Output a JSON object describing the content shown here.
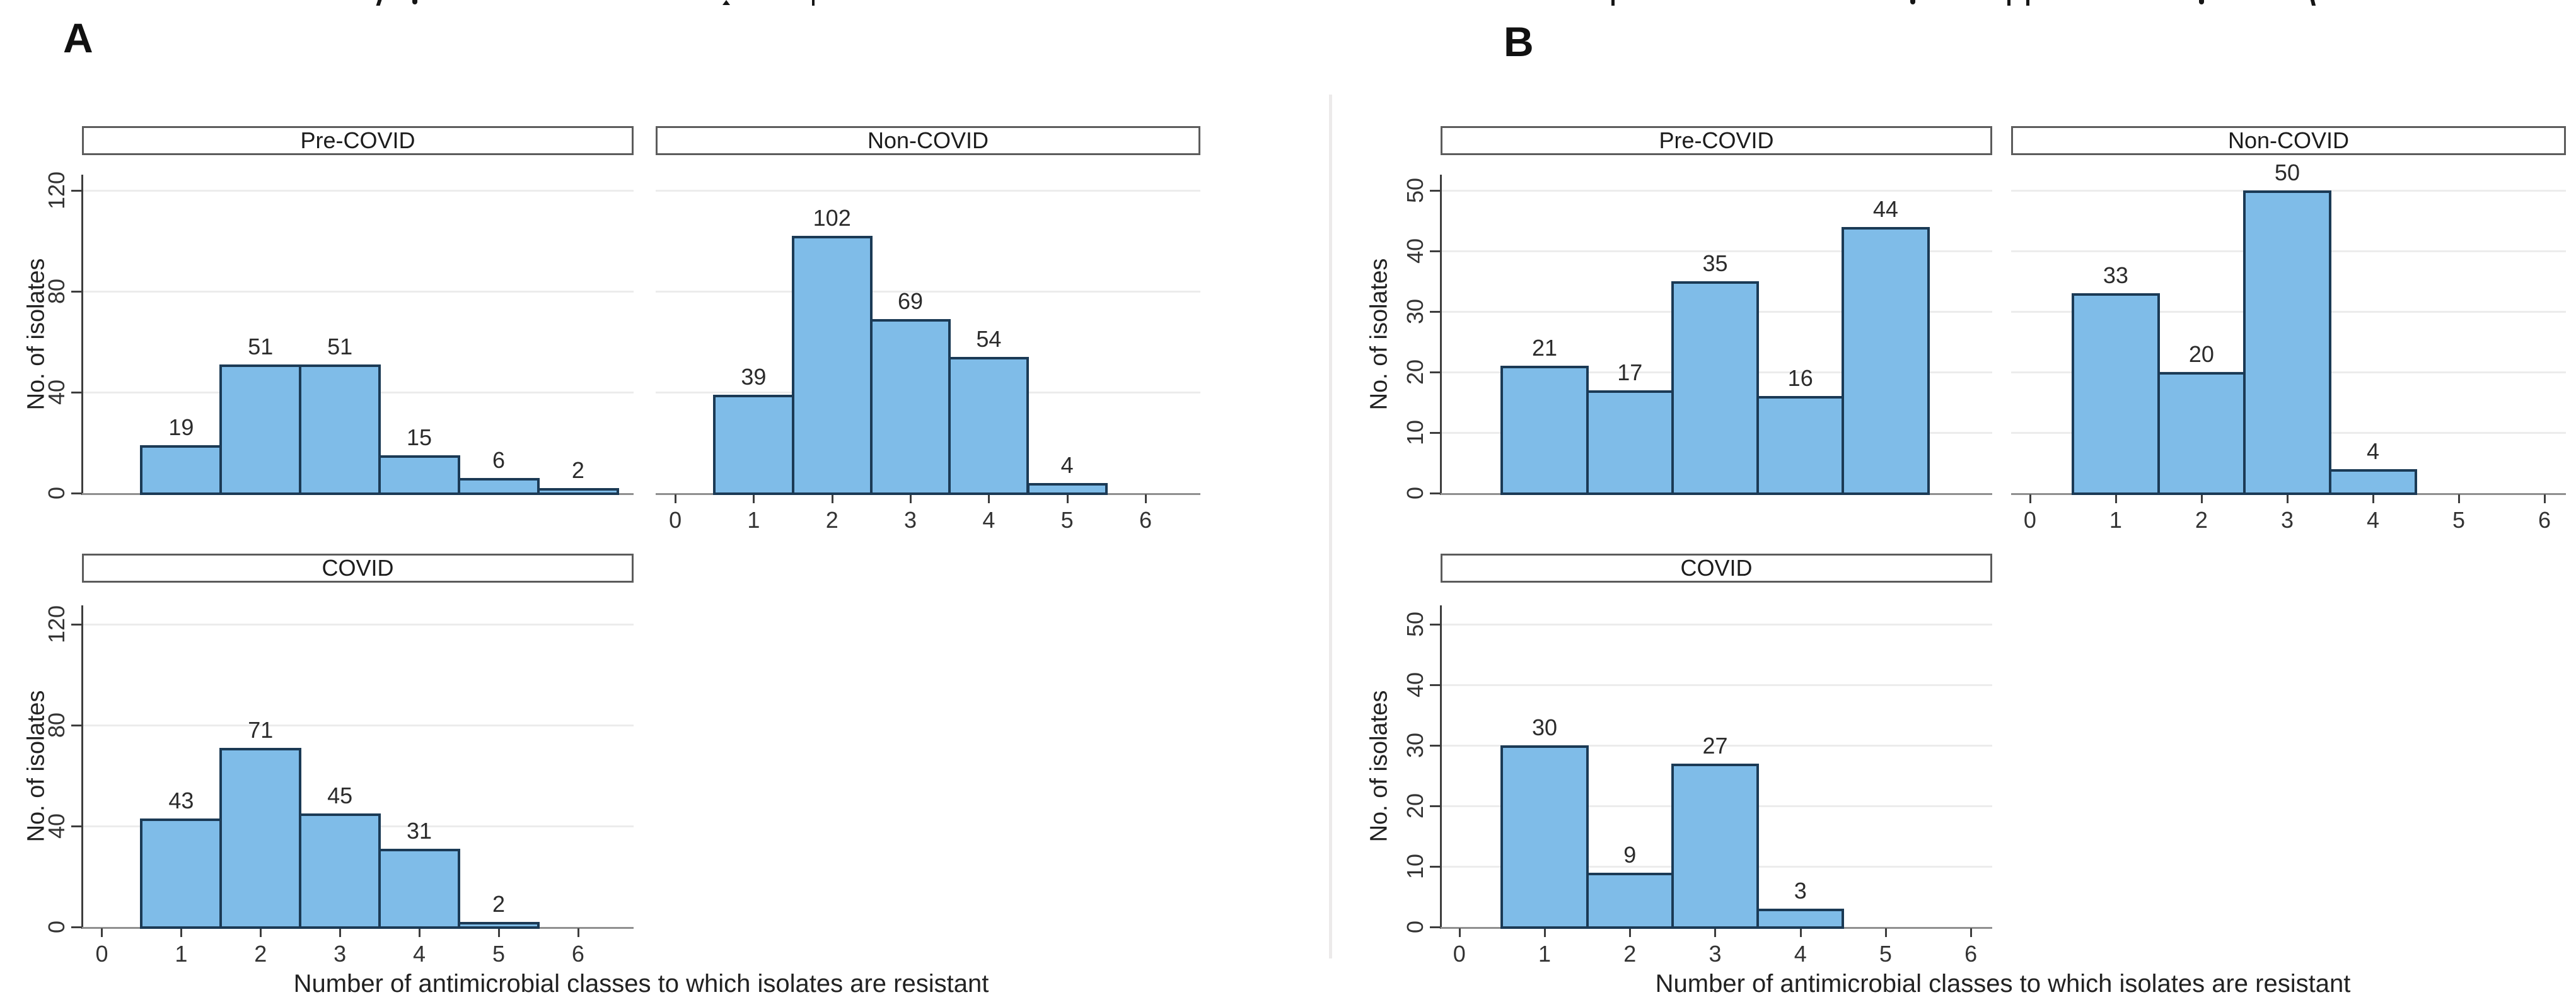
{
  "figure": {
    "panel_a_label": "A",
    "panel_b_label": "B",
    "x_axis_title": "Number of antimicrobial classes to which isolates are resistant",
    "y_axis_title": "No. of isolates"
  },
  "colors": {
    "bar_fill": "#7fbce8",
    "bar_edge": "#1b3a55",
    "gridline": "#ececec",
    "y_axis": "#3d3d3d",
    "x_axis": "#8f8f8f",
    "text": "#2b2b2b",
    "title_box_border": "#5c5c5c"
  },
  "chart_data": [
    {
      "id": "panel-a-pre-covid",
      "panel": "A",
      "type": "bar",
      "title": "Pre-COVID",
      "x": [
        1,
        2,
        3,
        4,
        5,
        6
      ],
      "values": [
        19,
        51,
        51,
        15,
        6,
        2
      ],
      "xticks": [
        0,
        1,
        2,
        3,
        4,
        5,
        6
      ],
      "yticks": [
        0,
        40,
        80,
        120
      ],
      "ylim": [
        0,
        126
      ],
      "x_tick_labels_shown": false,
      "y_axis_shown": true,
      "grid": true,
      "xlabel": "Number of antimicrobial classes to which isolates are resistant",
      "ylabel": "No. of isolates"
    },
    {
      "id": "panel-a-non-covid",
      "panel": "A",
      "type": "bar",
      "title": "Non-COVID",
      "x": [
        1,
        2,
        3,
        4,
        5
      ],
      "values": [
        39,
        102,
        69,
        54,
        4
      ],
      "xticks": [
        0,
        1,
        2,
        3,
        4,
        5,
        6
      ],
      "yticks": [
        0,
        40,
        80,
        120
      ],
      "ylim": [
        0,
        126
      ],
      "x_tick_labels_shown": true,
      "y_axis_shown": false,
      "grid": true,
      "xlabel": "Number of antimicrobial classes to which isolates are resistant",
      "ylabel": "No. of isolates"
    },
    {
      "id": "panel-a-covid",
      "panel": "A",
      "type": "bar",
      "title": "COVID",
      "x": [
        1,
        2,
        3,
        4,
        5
      ],
      "values": [
        43,
        71,
        45,
        31,
        2
      ],
      "xticks": [
        0,
        1,
        2,
        3,
        4,
        5,
        6
      ],
      "yticks": [
        0,
        40,
        80,
        120
      ],
      "ylim": [
        0,
        126
      ],
      "x_tick_labels_shown": true,
      "y_axis_shown": true,
      "grid": true,
      "xlabel": "Number of antimicrobial classes to which isolates are resistant",
      "ylabel": "No. of isolates"
    },
    {
      "id": "panel-b-pre-covid",
      "panel": "B",
      "type": "bar",
      "title": "Pre-COVID",
      "x": [
        1,
        2,
        3,
        4,
        5
      ],
      "values": [
        21,
        17,
        35,
        16,
        44
      ],
      "xticks": [
        0,
        1,
        2,
        3,
        4,
        5,
        6
      ],
      "yticks": [
        0,
        10,
        20,
        30,
        40,
        50
      ],
      "ylim": [
        0,
        52.5
      ],
      "x_tick_labels_shown": false,
      "y_axis_shown": true,
      "grid": true,
      "xlabel": "Number of antimicrobial classes to which isolates are resistant",
      "ylabel": "No. of isolates"
    },
    {
      "id": "panel-b-non-covid",
      "panel": "B",
      "type": "bar",
      "title": "Non-COVID",
      "x": [
        1,
        2,
        3,
        4
      ],
      "values": [
        33,
        20,
        50,
        4
      ],
      "xticks": [
        0,
        1,
        2,
        3,
        4,
        5,
        6
      ],
      "yticks": [
        0,
        10,
        20,
        30,
        40,
        50
      ],
      "ylim": [
        0,
        52.5
      ],
      "x_tick_labels_shown": true,
      "y_axis_shown": false,
      "grid": true,
      "xlabel": "Number of antimicrobial classes to which isolates are resistant",
      "ylabel": "No. of isolates"
    },
    {
      "id": "panel-b-covid",
      "panel": "B",
      "type": "bar",
      "title": "COVID",
      "x": [
        1,
        2,
        3,
        4
      ],
      "values": [
        30,
        9,
        27,
        3
      ],
      "xticks": [
        0,
        1,
        2,
        3,
        4,
        5,
        6
      ],
      "yticks": [
        0,
        10,
        20,
        30,
        40,
        50
      ],
      "ylim": [
        0,
        52.5
      ],
      "x_tick_labels_shown": true,
      "y_axis_shown": true,
      "grid": true,
      "xlabel": "Number of antimicrobial classes to which isolates are resistant",
      "ylabel": "No. of isolates"
    }
  ]
}
